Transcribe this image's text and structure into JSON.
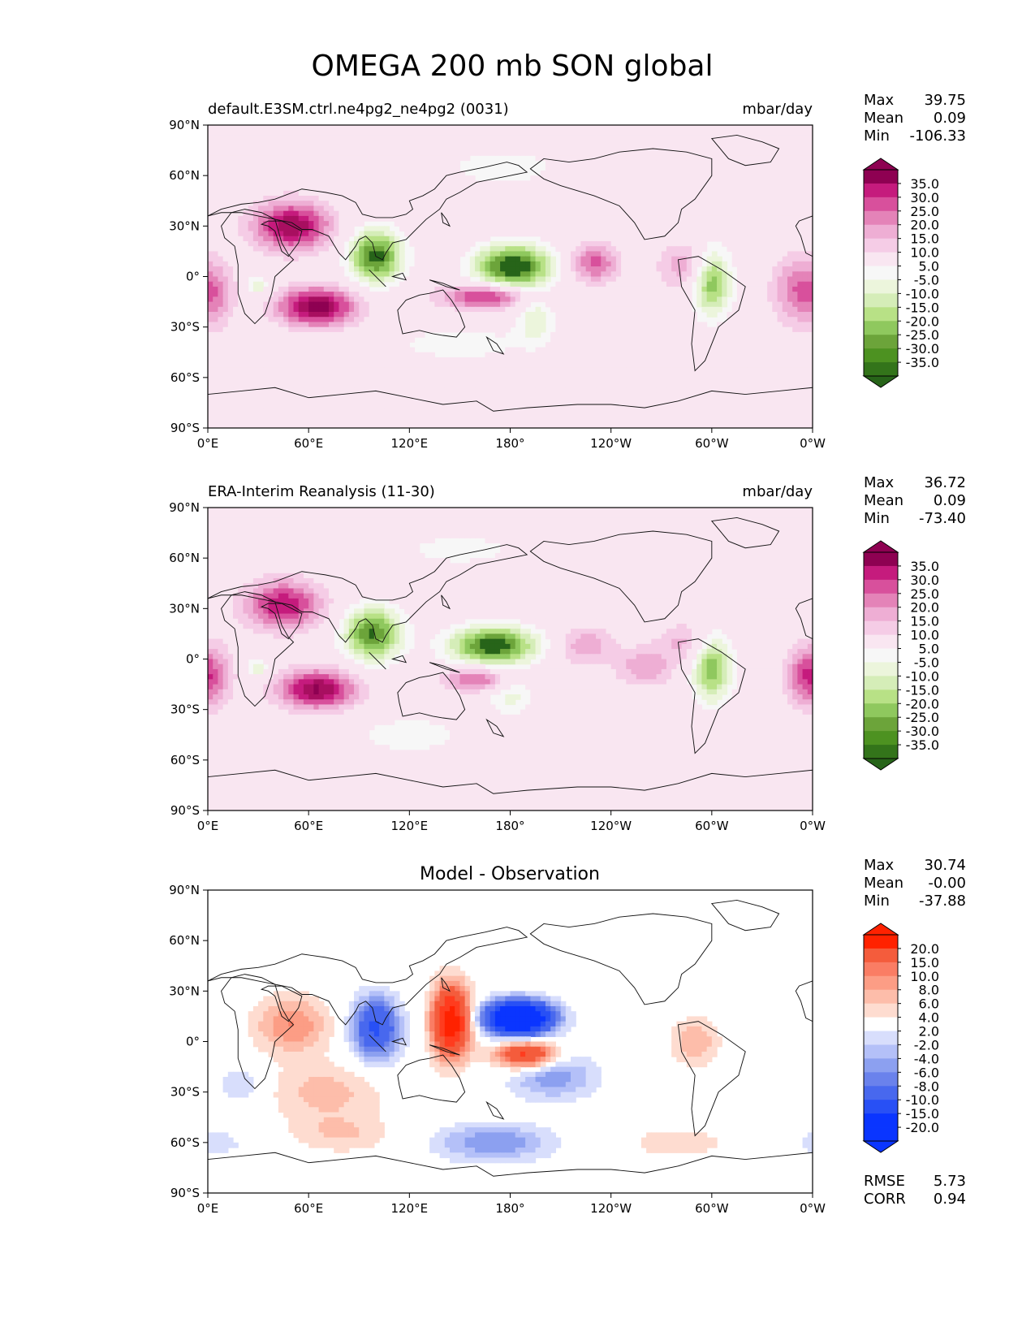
{
  "figure_title": "OMEGA 200 mb SON global",
  "chart_data": [
    {
      "type": "heatmap",
      "title_left": "default.E3SM.ctrl.ne4pg2_ne4pg2 (0031)",
      "units": "mbar/day",
      "stats": [
        {
          "label": "Max",
          "value": "39.75"
        },
        {
          "label": "Mean",
          "value": "0.09"
        },
        {
          "label": "Min",
          "value": "-106.33"
        }
      ],
      "colorbar_levels": [
        "35.0",
        "30.0",
        "25.0",
        "20.0",
        "15.0",
        "10.0",
        "5.0",
        "-5.0",
        "-10.0",
        "-15.0",
        "-20.0",
        "-25.0",
        "-30.0",
        "-35.0"
      ],
      "colorbar_colors": [
        "#8e0152",
        "#a80f60",
        "#c51b7d",
        "#d8509c",
        "#e483b8",
        "#eeaed4",
        "#f5cce6",
        "#f9e6f1",
        "#f7f7f7",
        "#ecf5dc",
        "#d5edb8",
        "#b8e186",
        "#8fc85e",
        "#6ca43a",
        "#4d9221",
        "#33741a",
        "#276419"
      ],
      "fields": [
        {
          "lon": 50,
          "lat": 30,
          "value": 35,
          "sigma": [
            16,
            10
          ]
        },
        {
          "lon": 65,
          "lat": -18,
          "value": 38,
          "sigma": [
            16,
            8
          ]
        },
        {
          "lon": 165,
          "lat": -12,
          "value": 28,
          "sigma": [
            18,
            5
          ]
        },
        {
          "lon": 230,
          "lat": 8,
          "value": 22,
          "sigma": [
            10,
            8
          ]
        },
        {
          "lon": 285,
          "lat": 6,
          "value": 14,
          "sigma": [
            12,
            10
          ]
        },
        {
          "lon": 350,
          "lat": -8,
          "value": 18,
          "sigma": [
            10,
            14
          ]
        },
        {
          "lon": 5,
          "lat": -10,
          "value": 14,
          "sigma": [
            8,
            14
          ]
        },
        {
          "lon": 100,
          "lat": 12,
          "value": -38,
          "sigma": [
            11,
            11
          ]
        },
        {
          "lon": 182,
          "lat": 6,
          "value": -42,
          "sigma": [
            16,
            9
          ]
        },
        {
          "lon": 300,
          "lat": -3,
          "value": -30,
          "sigma": [
            8,
            14
          ]
        },
        {
          "lon": 30,
          "lat": -5,
          "value": -16,
          "sigma": [
            4,
            4
          ]
        },
        {
          "lon": 195,
          "lat": -25,
          "value": -14,
          "sigma": [
            8,
            10
          ]
        },
        {
          "lon": 175,
          "lat": 65,
          "value": -10,
          "sigma": [
            22,
            7
          ]
        },
        {
          "lon": 150,
          "lat": -40,
          "value": -8,
          "sigma": [
            30,
            8
          ]
        }
      ]
    },
    {
      "type": "heatmap",
      "title_left": "ERA-Interim Reanalysis (11-30)",
      "units": "mbar/day",
      "stats": [
        {
          "label": "Max",
          "value": "36.72"
        },
        {
          "label": "Mean",
          "value": "0.09"
        },
        {
          "label": "Min",
          "value": "-73.40"
        }
      ],
      "colorbar_levels": [
        "35.0",
        "30.0",
        "25.0",
        "20.0",
        "15.0",
        "10.0",
        "5.0",
        "-5.0",
        "-10.0",
        "-15.0",
        "-20.0",
        "-25.0",
        "-30.0",
        "-35.0"
      ],
      "colorbar_colors": [
        "#8e0152",
        "#a80f60",
        "#c51b7d",
        "#d8509c",
        "#e483b8",
        "#eeaed4",
        "#f5cce6",
        "#f9e6f1",
        "#f7f7f7",
        "#ecf5dc",
        "#d5edb8",
        "#b8e186",
        "#8fc85e",
        "#6ca43a",
        "#4d9221",
        "#33741a",
        "#276419"
      ],
      "fields": [
        {
          "lon": 45,
          "lat": 32,
          "value": 30,
          "sigma": [
            16,
            10
          ]
        },
        {
          "lon": 65,
          "lat": -18,
          "value": 36,
          "sigma": [
            16,
            8
          ]
        },
        {
          "lon": 160,
          "lat": -12,
          "value": 22,
          "sigma": [
            14,
            5
          ]
        },
        {
          "lon": 225,
          "lat": 8,
          "value": 14,
          "sigma": [
            12,
            8
          ]
        },
        {
          "lon": 260,
          "lat": -5,
          "value": 14,
          "sigma": [
            12,
            8
          ]
        },
        {
          "lon": 285,
          "lat": 10,
          "value": 12,
          "sigma": [
            12,
            8
          ]
        },
        {
          "lon": 355,
          "lat": -10,
          "value": 20,
          "sigma": [
            8,
            12
          ]
        },
        {
          "lon": 5,
          "lat": -10,
          "value": 12,
          "sigma": [
            8,
            14
          ]
        },
        {
          "lon": 98,
          "lat": 15,
          "value": -36,
          "sigma": [
            12,
            11
          ]
        },
        {
          "lon": 170,
          "lat": 8,
          "value": -40,
          "sigma": [
            18,
            8
          ]
        },
        {
          "lon": 300,
          "lat": -5,
          "value": -30,
          "sigma": [
            8,
            14
          ]
        },
        {
          "lon": 30,
          "lat": -5,
          "value": -16,
          "sigma": [
            4,
            4
          ]
        },
        {
          "lon": 180,
          "lat": -22,
          "value": -12,
          "sigma": [
            10,
            8
          ]
        },
        {
          "lon": 120,
          "lat": -45,
          "value": -10,
          "sigma": [
            22,
            7
          ]
        },
        {
          "lon": 150,
          "lat": 65,
          "value": -8,
          "sigma": [
            25,
            7
          ]
        }
      ]
    },
    {
      "type": "heatmap",
      "title_center": "Model - Observation",
      "units": "",
      "stats": [
        {
          "label": "Max",
          "value": "30.74"
        },
        {
          "label": "Mean",
          "value": "-0.00"
        },
        {
          "label": "Min",
          "value": "-37.88"
        }
      ],
      "extra_stats": [
        {
          "label": "RMSE",
          "value": "5.73"
        },
        {
          "label": "CORR",
          "value": "0.94"
        }
      ],
      "colorbar_levels": [
        "20.0",
        "15.0",
        "10.0",
        "8.0",
        "6.0",
        "4.0",
        "2.0",
        "-2.0",
        "-4.0",
        "-6.0",
        "-8.0",
        "-10.0",
        "-15.0",
        "-20.0"
      ],
      "colorbar_colors": [
        "#ff2200",
        "#ff3c1e",
        "#f45c3c",
        "#fa7d64",
        "#fc9d85",
        "#fdbdaa",
        "#fedcd0",
        "#ffffff",
        "#d8defc",
        "#b4c0f8",
        "#8ca0f0",
        "#6a82ec",
        "#4868ee",
        "#2850f5",
        "#0a35ff"
      ],
      "fields": [
        {
          "lon": 145,
          "lat": 12,
          "value": 24,
          "sigma": [
            8,
            15
          ]
        },
        {
          "lon": 190,
          "lat": -8,
          "value": 18,
          "sigma": [
            13,
            6
          ]
        },
        {
          "lon": 50,
          "lat": 10,
          "value": 8,
          "sigma": [
            16,
            12
          ]
        },
        {
          "lon": 70,
          "lat": -30,
          "value": 5,
          "sigma": [
            24,
            12
          ]
        },
        {
          "lon": 80,
          "lat": -55,
          "value": 4,
          "sigma": [
            22,
            8
          ]
        },
        {
          "lon": 290,
          "lat": 0,
          "value": 6,
          "sigma": [
            10,
            10
          ]
        },
        {
          "lon": 280,
          "lat": -60,
          "value": 4,
          "sigma": [
            20,
            6
          ]
        },
        {
          "lon": 185,
          "lat": 14,
          "value": -36,
          "sigma": [
            14,
            7
          ]
        },
        {
          "lon": 100,
          "lat": 8,
          "value": -16,
          "sigma": [
            10,
            13
          ]
        },
        {
          "lon": 205,
          "lat": -20,
          "value": -8,
          "sigma": [
            18,
            10
          ]
        },
        {
          "lon": 170,
          "lat": -60,
          "value": -8,
          "sigma": [
            24,
            8
          ]
        },
        {
          "lon": 20,
          "lat": -25,
          "value": -4,
          "sigma": [
            10,
            8
          ]
        },
        {
          "lon": 5,
          "lat": -60,
          "value": -3,
          "sigma": [
            14,
            6
          ]
        }
      ]
    }
  ],
  "axes": {
    "x_ticks": [
      "0°E",
      "60°E",
      "120°E",
      "180°",
      "120°W",
      "60°W",
      "0°W"
    ],
    "y_ticks": [
      "90°N",
      "60°N",
      "30°N",
      "0°",
      "30°S",
      "60°S",
      "90°S"
    ],
    "xlim": [
      0,
      360
    ],
    "ylim": [
      -90,
      90
    ]
  }
}
